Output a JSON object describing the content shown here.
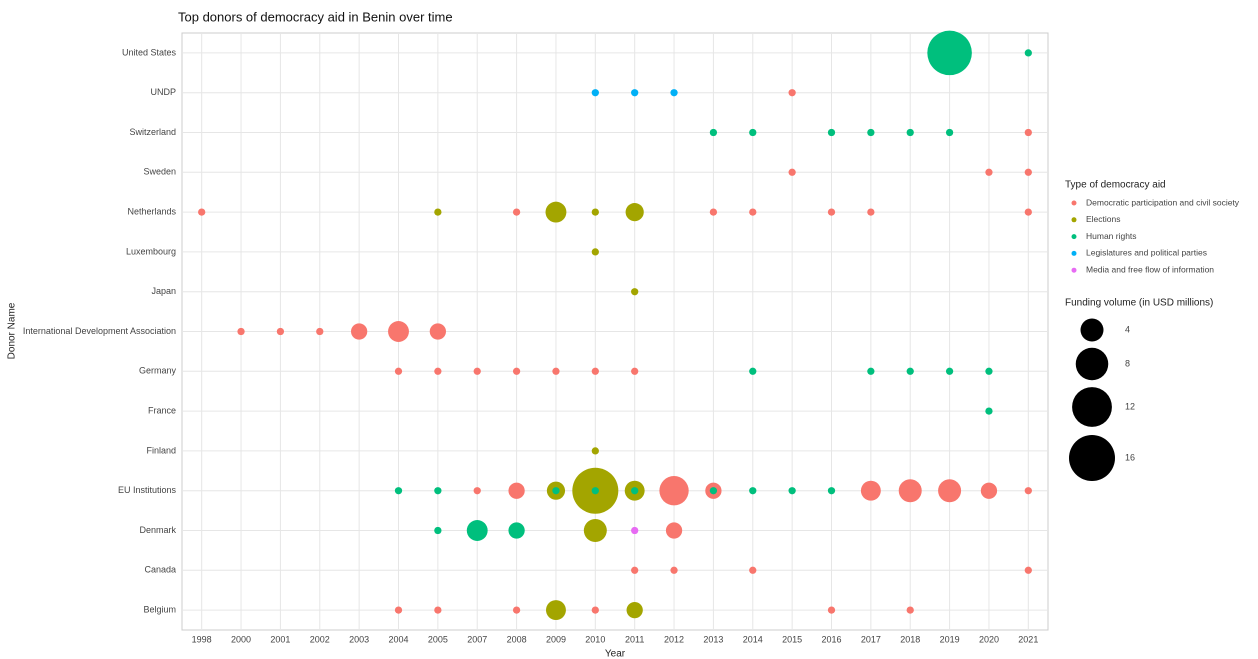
{
  "chart_data": {
    "type": "scatter",
    "title": "Top donors of democracy aid in Benin over time",
    "x_label": "Year",
    "y_label": "Donor Name",
    "categories": [
      "1998",
      "2000",
      "2001",
      "2002",
      "2003",
      "2004",
      "2005",
      "2007",
      "2008",
      "2009",
      "2010",
      "2011",
      "2012",
      "2013",
      "2014",
      "2015",
      "2016",
      "2017",
      "2018",
      "2019",
      "2020",
      "2021"
    ],
    "y_categories": [
      "Belgium",
      "Canada",
      "Denmark",
      "EU Institutions",
      "Finland",
      "France",
      "Germany",
      "International Development Association",
      "Japan",
      "Luxembourg",
      "Netherlands",
      "Sweden",
      "Switzerland",
      "UNDP",
      "United States"
    ],
    "grid": true,
    "legend_title": "Type of democracy aid",
    "size_legend": {
      "title": "Funding volume (in USD millions)",
      "values": [
        4,
        8,
        12,
        16
      ]
    },
    "series": [
      {
        "name": "Democratic participation and civil society",
        "color": "#F8766D",
        "x": [
          "2015",
          "2021",
          "2015",
          "2020",
          "2021",
          "1998",
          "2008",
          "2013",
          "2014",
          "2016",
          "2017",
          "2021",
          "2000",
          "2001",
          "2002",
          "2003",
          "2004",
          "2005",
          "2004",
          "2005",
          "2007",
          "2008",
          "2009",
          "2010",
          "2011",
          "2007",
          "2008",
          "2012",
          "2013",
          "2017",
          "2018",
          "2019",
          "2020",
          "2021",
          "2012",
          "2011",
          "2012",
          "2014",
          "2021",
          "2004",
          "2005",
          "2008",
          "2010",
          "2016",
          "2018"
        ],
        "y": [
          "UNDP",
          "Switzerland",
          "Sweden",
          "Sweden",
          "Sweden",
          "Netherlands",
          "Netherlands",
          "Netherlands",
          "Netherlands",
          "Netherlands",
          "Netherlands",
          "Netherlands",
          "International Development Association",
          "International Development Association",
          "International Development Association",
          "International Development Association",
          "International Development Association",
          "International Development Association",
          "Germany",
          "Germany",
          "Germany",
          "Germany",
          "Germany",
          "Germany",
          "Germany",
          "EU Institutions",
          "EU Institutions",
          "EU Institutions",
          "EU Institutions",
          "EU Institutions",
          "EU Institutions",
          "EU Institutions",
          "EU Institutions",
          "EU Institutions",
          "Denmark",
          "Canada",
          "Canada",
          "Canada",
          "Canada",
          "Belgium",
          "Belgium",
          "Belgium",
          "Belgium",
          "Belgium",
          "Belgium"
        ],
        "sizes": [
          0.4,
          0.4,
          0.4,
          0.4,
          0.4,
          0.4,
          0.4,
          0.4,
          0.4,
          0.4,
          0.4,
          0.4,
          0.4,
          0.4,
          0.4,
          2,
          3.3,
          2,
          0.4,
          0.4,
          0.4,
          0.4,
          0.4,
          0.4,
          0.4,
          0.4,
          2,
          6.5,
          2,
          3,
          4,
          4,
          2,
          0.4,
          2,
          0.4,
          0.4,
          0.4,
          0.4,
          0.4,
          0.4,
          0.4,
          0.4,
          0.4,
          0.4
        ]
      },
      {
        "name": "Elections",
        "color": "#A3A500",
        "x": [
          "2005",
          "2009",
          "2010",
          "2011",
          "2010",
          "2011",
          "2010",
          "2009",
          "2010",
          "2011",
          "2010",
          "2009",
          "2011"
        ],
        "y": [
          "Netherlands",
          "Netherlands",
          "Netherlands",
          "Netherlands",
          "Luxembourg",
          "Japan",
          "Finland",
          "EU Institutions",
          "EU Institutions",
          "EU Institutions",
          "Denmark",
          "Belgium",
          "Belgium"
        ],
        "sizes": [
          0.4,
          3.3,
          0.4,
          2.5,
          0.4,
          0.4,
          0.4,
          2.5,
          16,
          3,
          4,
          3,
          2
        ]
      },
      {
        "name": "Human rights",
        "color": "#00BF7D",
        "x": [
          "2019",
          "2021",
          "2013",
          "2014",
          "2016",
          "2017",
          "2018",
          "2019",
          "2014",
          "2017",
          "2018",
          "2019",
          "2020",
          "2020",
          "2004",
          "2005",
          "2009",
          "2010",
          "2011",
          "2013",
          "2014",
          "2015",
          "2016",
          "2005",
          "2007",
          "2008"
        ],
        "y": [
          "United States",
          "United States",
          "Switzerland",
          "Switzerland",
          "Switzerland",
          "Switzerland",
          "Switzerland",
          "Switzerland",
          "Germany",
          "Germany",
          "Germany",
          "Germany",
          "Germany",
          "France",
          "EU Institutions",
          "EU Institutions",
          "EU Institutions",
          "EU Institutions",
          "EU Institutions",
          "EU Institutions",
          "EU Institutions",
          "EU Institutions",
          "EU Institutions",
          "Denmark",
          "Denmark",
          "Denmark"
        ],
        "sizes": [
          15,
          0.4,
          0.4,
          0.4,
          0.4,
          0.4,
          0.4,
          0.4,
          0.4,
          0.4,
          0.4,
          0.4,
          0.4,
          0.4,
          0.4,
          0.4,
          0.4,
          0.4,
          0.4,
          0.4,
          0.4,
          0.4,
          0.4,
          0.4,
          3.3,
          2
        ]
      },
      {
        "name": "Legislatures and political parties",
        "color": "#00B0F6",
        "x": [
          "2010",
          "2011",
          "2012"
        ],
        "y": [
          "UNDP",
          "UNDP",
          "UNDP"
        ],
        "sizes": [
          0.4,
          0.4,
          0.4
        ]
      },
      {
        "name": "Media and free flow of information",
        "color": "#E76BF3",
        "x": [
          "2011"
        ],
        "y": [
          "Denmark"
        ],
        "sizes": [
          0.4
        ]
      }
    ]
  }
}
